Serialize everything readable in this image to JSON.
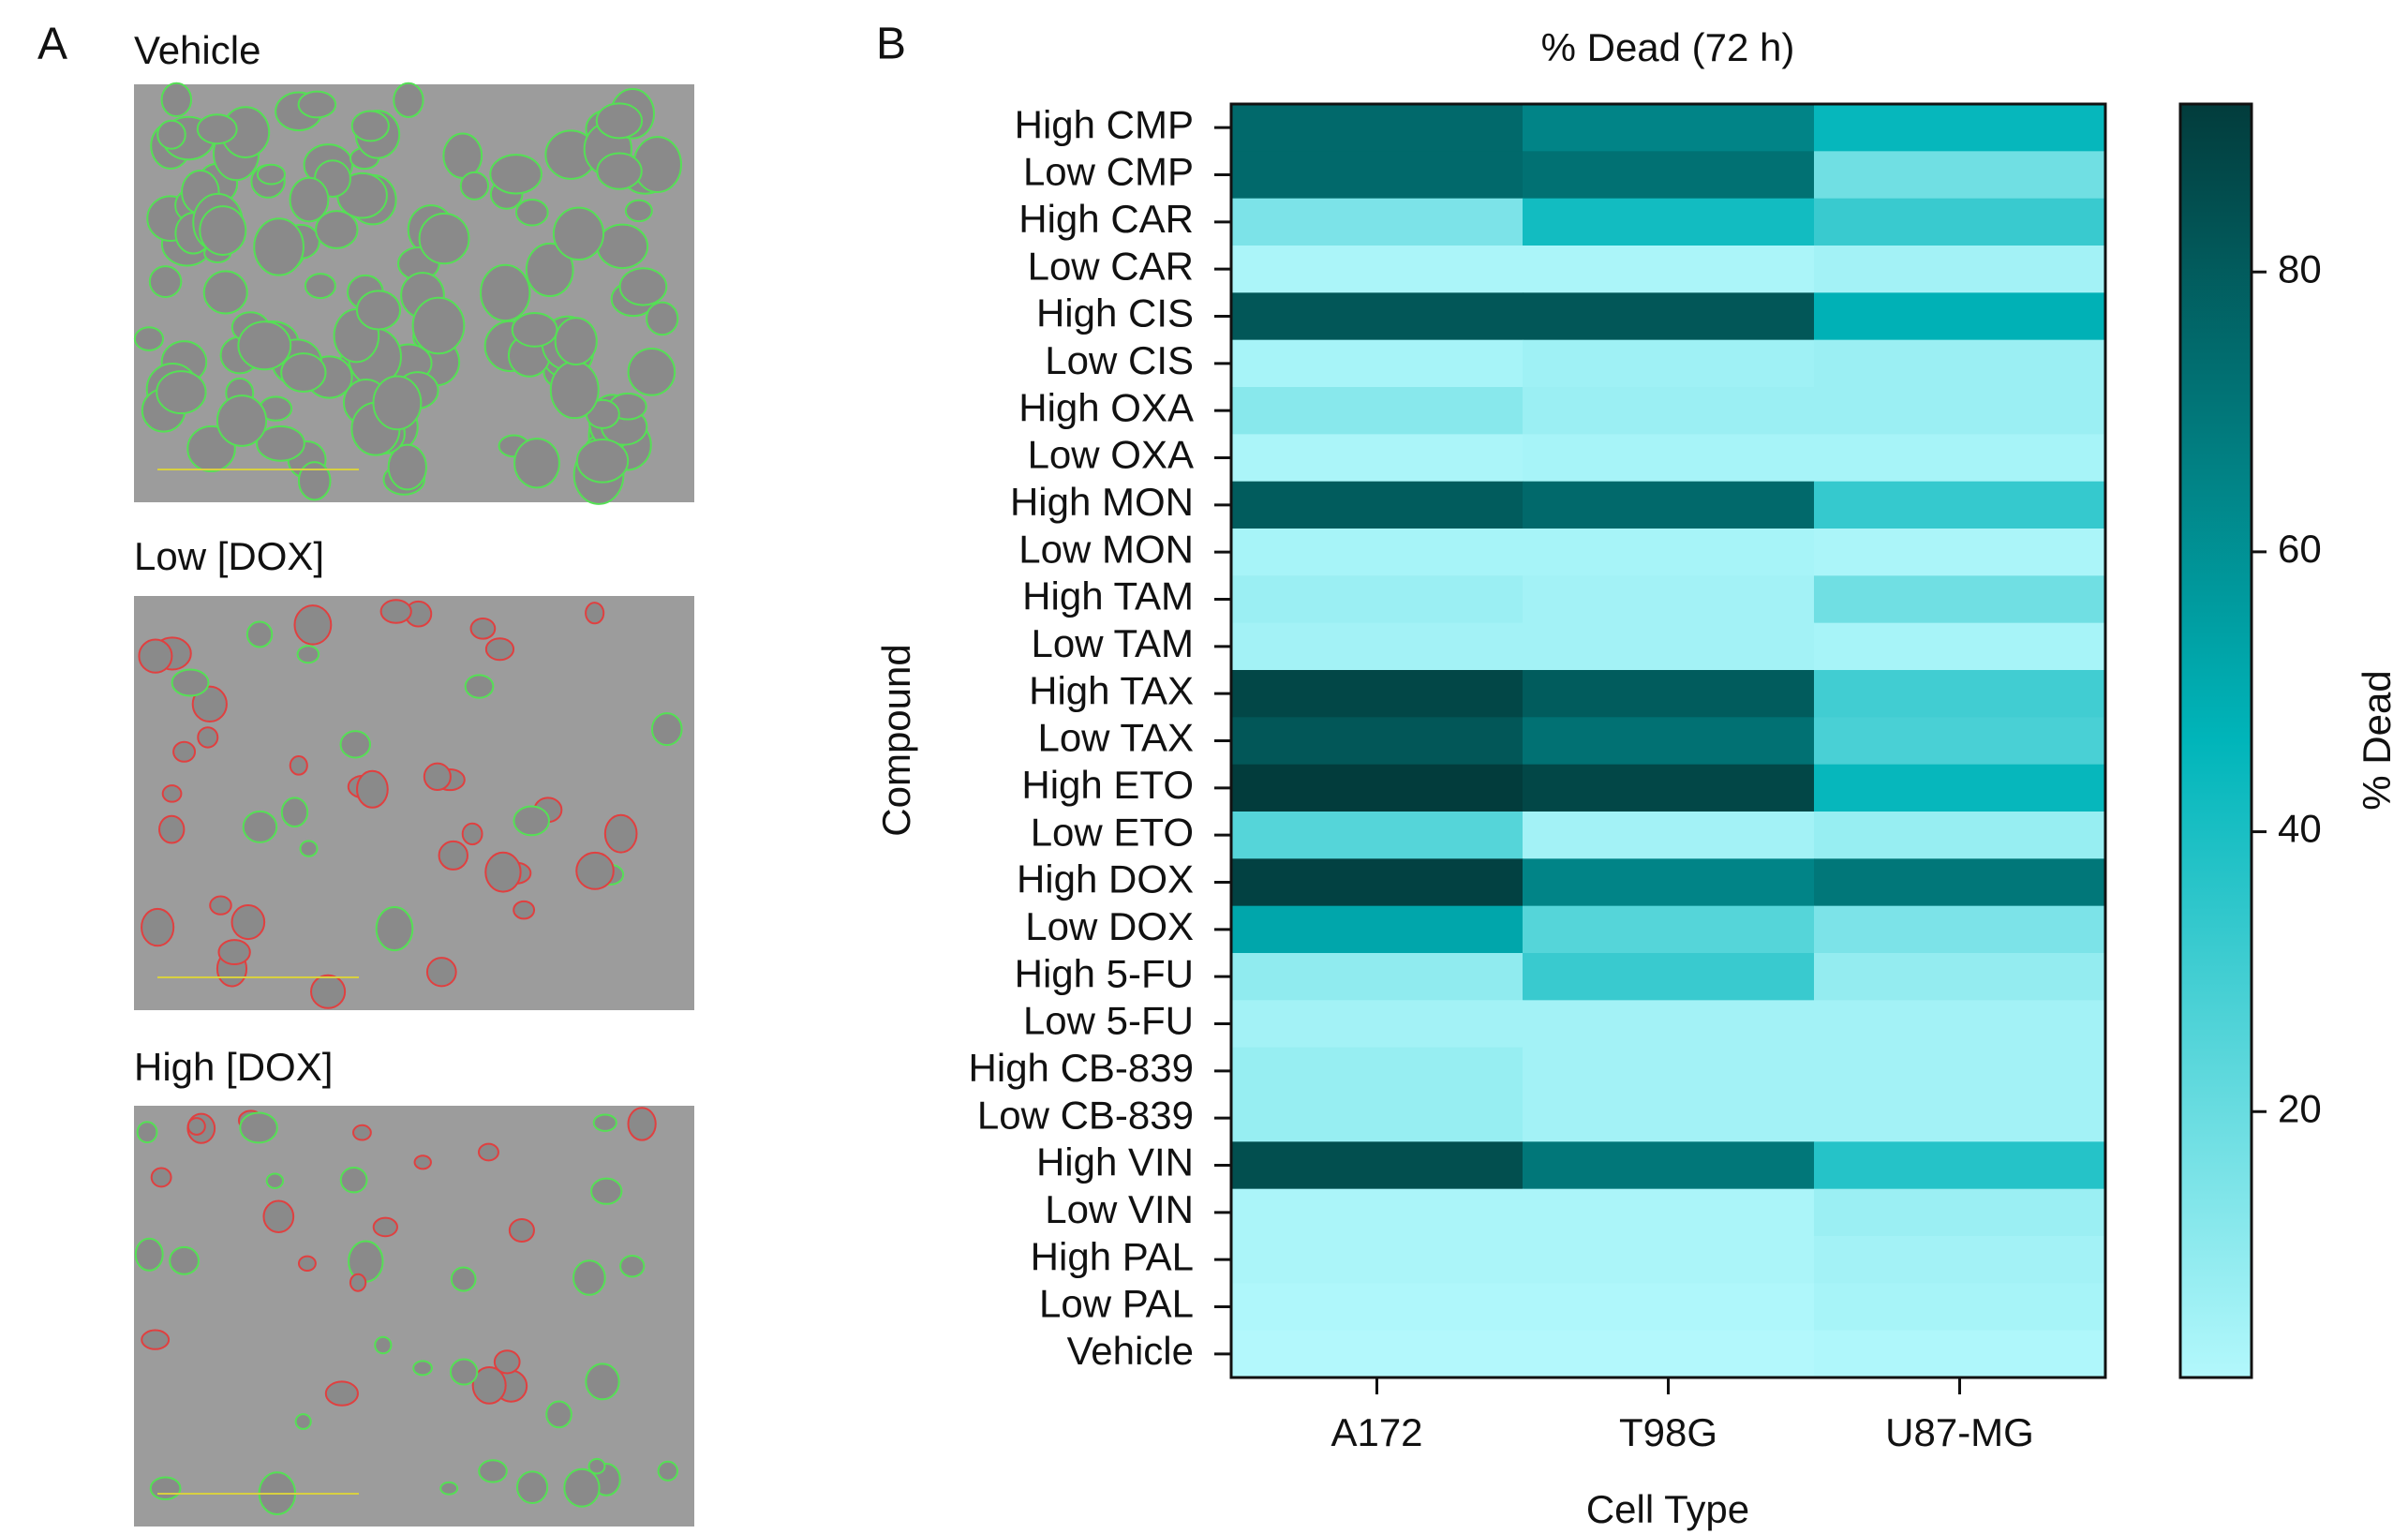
{
  "panel_labels": [
    "A",
    "B"
  ],
  "image_titles": [
    "Vehicle",
    "Low [DOX]",
    "High [DOX]"
  ],
  "chart_data": {
    "type": "heatmap",
    "title": "% Dead (72 h)",
    "x_label": "Cell Type",
    "y_label": "Compound",
    "colorbar_label": "% Dead",
    "x_categories": [
      "A172",
      "T98G",
      "U87-MG"
    ],
    "y_categories": [
      "High CMP",
      "Low CMP",
      "High CAR",
      "Low CAR",
      "High CIS",
      "Low CIS",
      "High OXA",
      "Low OXA",
      "High MON",
      "Low MON",
      "High TAM",
      "Low TAM",
      "High TAX",
      "Low TAX",
      "High ETO",
      "Low ETO",
      "High DOX",
      "Low DOX",
      "High 5-FU",
      "Low 5-FU",
      "High CB-839",
      "Low CB-839",
      "High VIN",
      "Low VIN",
      "High PAL",
      "Low PAL",
      "Vehicle"
    ],
    "values": [
      [
        75,
        65,
        45
      ],
      [
        75,
        72,
        18
      ],
      [
        15,
        42,
        32
      ],
      [
        3,
        3,
        5
      ],
      [
        82,
        82,
        48
      ],
      [
        4,
        6,
        7
      ],
      [
        12,
        7,
        7
      ],
      [
        3,
        4,
        4
      ],
      [
        80,
        75,
        33
      ],
      [
        4,
        4,
        3
      ],
      [
        7,
        5,
        18
      ],
      [
        5,
        5,
        4
      ],
      [
        88,
        80,
        30
      ],
      [
        82,
        72,
        28
      ],
      [
        92,
        88,
        45
      ],
      [
        25,
        5,
        8
      ],
      [
        90,
        65,
        70
      ],
      [
        52,
        25,
        15
      ],
      [
        10,
        32,
        9
      ],
      [
        5,
        5,
        5
      ],
      [
        8,
        5,
        5
      ],
      [
        8,
        5,
        5
      ],
      [
        85,
        70,
        37
      ],
      [
        3,
        3,
        7
      ],
      [
        3,
        3,
        5
      ],
      [
        2,
        2,
        4
      ],
      [
        1,
        1,
        2
      ]
    ],
    "zlim": [
      1,
      92
    ],
    "zticks": [
      20,
      40,
      60,
      80
    ],
    "colorscale": [
      "#b3f8fc",
      "#00b5ba",
      "#023c3c"
    ]
  }
}
